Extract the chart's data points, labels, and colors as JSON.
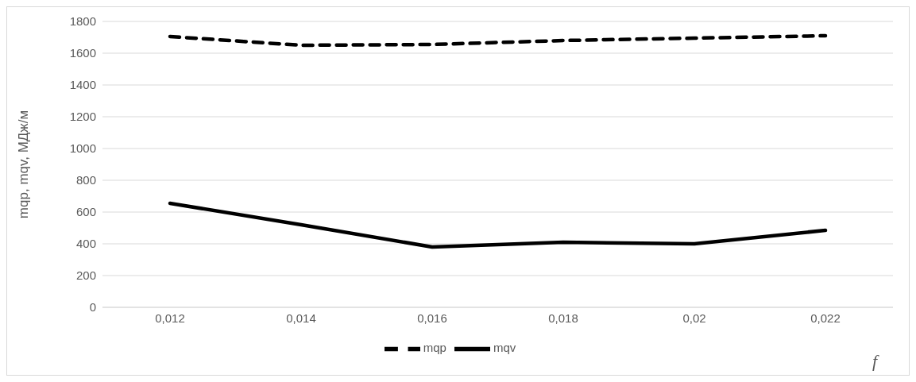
{
  "chart_data": {
    "type": "line",
    "categories": [
      "0,012",
      "0,014",
      "0,016",
      "0,018",
      "0,02",
      "0,022"
    ],
    "series": [
      {
        "name": "mqp",
        "color": "#000000",
        "line_style": "dashed",
        "values": [
          1705,
          1650,
          1655,
          1680,
          1695,
          1710
        ]
      },
      {
        "name": "mqv",
        "color": "#000000",
        "line_style": "solid",
        "values": [
          655,
          520,
          380,
          410,
          400,
          485
        ]
      }
    ],
    "ylabel": "mqp, mqv, МДж/м",
    "xlabel": "f",
    "ylim": [
      0,
      1800
    ],
    "yticks": [
      0,
      200,
      400,
      600,
      800,
      1000,
      1200,
      1400,
      1600,
      1800
    ],
    "grid": "y",
    "legend": "bottom",
    "marker": "none"
  }
}
